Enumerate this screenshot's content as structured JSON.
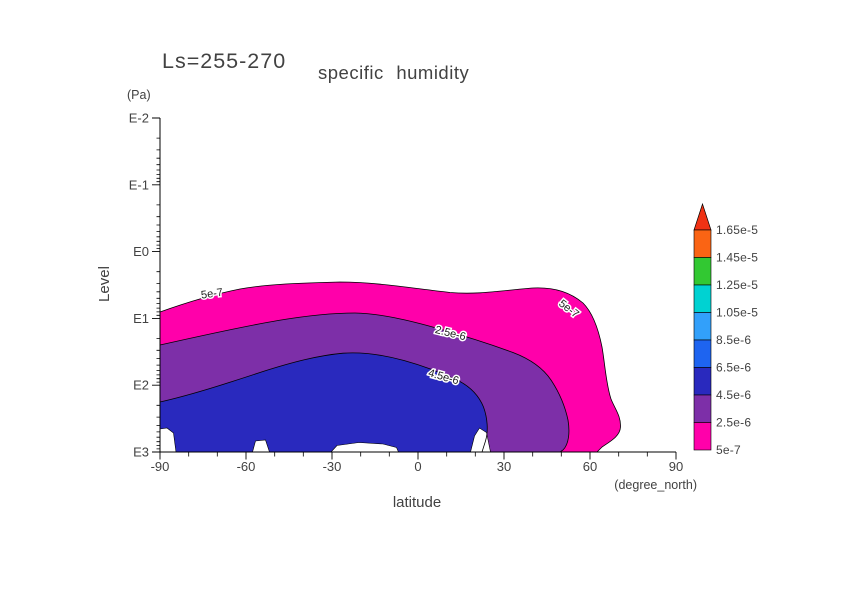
{
  "title": {
    "main": "Ls=255-270",
    "sub": "specific humidity"
  },
  "axes": {
    "y_unit_label": "(Pa)",
    "y_axis_title": "Level",
    "y_ticks": [
      "E-2",
      "E-1",
      "E0",
      "E1",
      "E2",
      "E3"
    ],
    "x_axis_title": "latitude",
    "x_unit_label": "(degree_north)",
    "x_ticks": [
      "-90",
      "-60",
      "-30",
      "0",
      "30",
      "60",
      "90"
    ]
  },
  "colorbar": {
    "labels": [
      "1.65e-5",
      "1.45e-5",
      "1.25e-5",
      "1.05e-5",
      "8.5e-6",
      "6.5e-6",
      "4.5e-6",
      "2.5e-6",
      "5e-7"
    ],
    "segment_colors_top_to_bottom": [
      "#fa6414",
      "#32c832",
      "#00d2d2",
      "#32a0fa",
      "#1e64f0",
      "#2929be",
      "#7d2fa8",
      "#ff00aa"
    ],
    "triangle_color": "#f03214"
  },
  "chart_data": {
    "type": "filled_contour",
    "title": "Ls=255-270 specific humidity",
    "x": {
      "label": "latitude",
      "unit": "degree_north",
      "min": -90,
      "max": 90,
      "tick_step": 30
    },
    "y": {
      "label": "Level",
      "unit": "Pa",
      "scale": "log10",
      "top": "1e-2",
      "bottom": "1e3",
      "ticks": [
        "E-2",
        "E-1",
        "E0",
        "E1",
        "E2",
        "E3"
      ]
    },
    "contour_levels": [
      "5e-7",
      "2.5e-6",
      "4.5e-6",
      "6.5e-6",
      "8.5e-6",
      "1.05e-5",
      "1.25e-5",
      "1.45e-5",
      "1.65e-5"
    ],
    "fill_bands": [
      {
        "range": "5e-7 to 2.5e-6",
        "color": "#ff00aa"
      },
      {
        "range": "2.5e-6 to 4.5e-6",
        "color": "#7d2fa8"
      },
      {
        "range": "4.5e-6 to 6.5e-6",
        "color": "#2929be"
      }
    ],
    "contour_lines": [
      {
        "level": "5e-7",
        "points_lat_pa": [
          [
            -90,
            8
          ],
          [
            -76,
            4.6
          ],
          [
            -52,
            3.0
          ],
          [
            -24,
            3.0
          ],
          [
            4,
            3.9
          ],
          [
            36,
            3.5
          ],
          [
            51,
            4.0
          ],
          [
            63,
            15
          ],
          [
            68,
            170
          ],
          [
            70,
            390
          ],
          [
            63,
            1000
          ]
        ]
      },
      {
        "level": "2.5e-6",
        "points_lat_pa": [
          [
            -90,
            25
          ],
          [
            -69,
            15
          ],
          [
            -48,
            10.6
          ],
          [
            -27,
            8.6
          ],
          [
            -6,
            10.6
          ],
          [
            13,
            16.6
          ],
          [
            30,
            28
          ],
          [
            42,
            50
          ],
          [
            49,
            118
          ],
          [
            52,
            330
          ],
          [
            49,
            1000
          ]
        ]
      },
      {
        "level": "4.5e-6",
        "points_lat_pa": [
          [
            -90,
            178
          ],
          [
            -73,
            110
          ],
          [
            -55,
            63
          ],
          [
            -38,
            39
          ],
          [
            -22,
            33
          ],
          [
            -6,
            41
          ],
          [
            8,
            59
          ],
          [
            18,
            110
          ],
          [
            23,
            240
          ],
          [
            24,
            470
          ],
          [
            22,
            1000
          ]
        ]
      }
    ],
    "contour_line_labels": [
      {
        "text": "5e-7",
        "approx_lat": -72,
        "approx_pa": 4.2
      },
      {
        "text": "5e-7",
        "approx_lat": 53,
        "approx_pa": 7.5
      },
      {
        "text": "2.5e-6",
        "approx_lat": 12,
        "approx_pa": 17
      },
      {
        "text": "4.5e-6",
        "approx_lat": 9,
        "approx_pa": 78
      }
    ],
    "missing_data_gaps_lat": [
      [
        -90,
        -84
      ],
      [
        -58,
        -52
      ],
      [
        -30,
        -7
      ],
      [
        17,
        24
      ]
    ],
    "legend_position": "right",
    "grid": false
  }
}
